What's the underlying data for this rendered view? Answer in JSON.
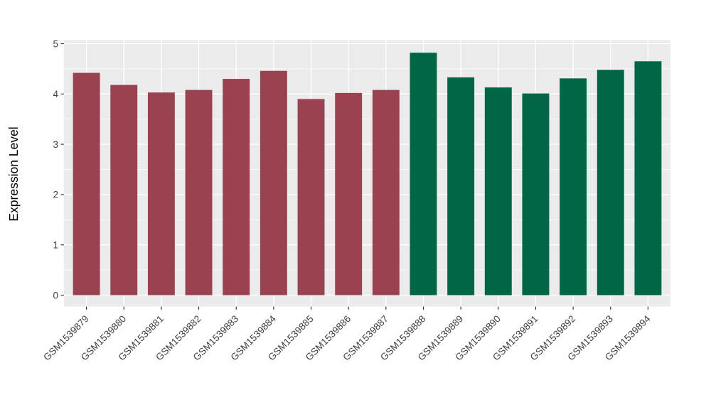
{
  "chart_data": {
    "type": "bar",
    "title": "",
    "xlabel": "",
    "ylabel": "Expression Level",
    "categories": [
      "GSM1539879",
      "GSM1539880",
      "GSM1539881",
      "GSM1539882",
      "GSM1539883",
      "GSM1539884",
      "GSM1539885",
      "GSM1539886",
      "GSM1539887",
      "GSM1539888",
      "GSM1539889",
      "GSM1539890",
      "GSM1539891",
      "GSM1539892",
      "GSM1539893",
      "GSM1539894"
    ],
    "values": [
      4.42,
      4.18,
      4.03,
      4.08,
      4.3,
      4.46,
      3.9,
      4.02,
      4.08,
      4.82,
      4.33,
      4.13,
      4.01,
      4.31,
      4.48,
      4.65
    ],
    "bar_groups": [
      "A",
      "A",
      "A",
      "A",
      "A",
      "A",
      "A",
      "A",
      "A",
      "B",
      "B",
      "B",
      "B",
      "B",
      "B",
      "B"
    ],
    "group_colors": {
      "A": "#9A4350",
      "B": "#006647"
    },
    "yticks": [
      0,
      1,
      2,
      3,
      4,
      5
    ],
    "ylim": [
      0,
      5
    ],
    "grid": true,
    "legend": "none",
    "panel_bg": "#EBEBEB",
    "grid_color": "#FFFFFF",
    "tick_text_color": "#404040",
    "axis_title_color": "#000000",
    "x_label_rotation_deg": 45
  }
}
